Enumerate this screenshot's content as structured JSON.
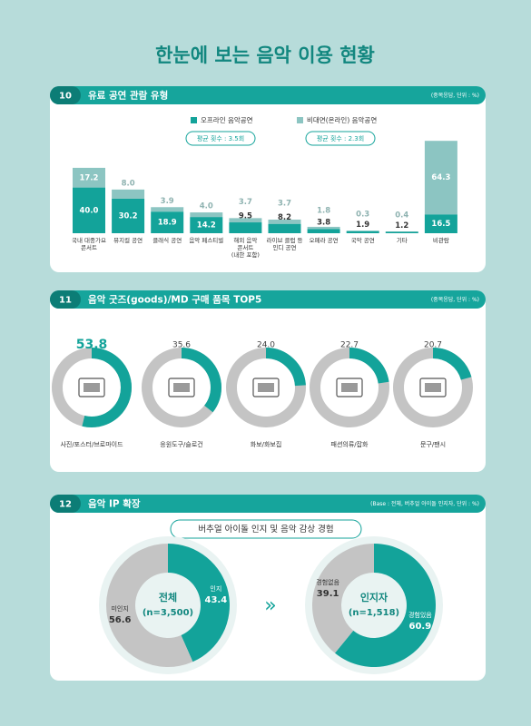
{
  "title": "한눈에 보는 음악 이용 현황",
  "chart_data": [
    {
      "type": "bar",
      "number": "10",
      "title": "유료 공연 관람 유형",
      "note": "(중복응답, 단위 : %)",
      "categories": [
        "국내 대중가요\n콘서트",
        "뮤지컬 공연",
        "클래식 공연",
        "음악 페스티벌",
        "해외 음악\n콘서트\n(내한 포함)",
        "라이브 클럽 등\n인디 공연",
        "오페라 공연",
        "국악 공연",
        "기타",
        "비관람"
      ],
      "series": [
        {
          "name": "오프라인 음악공연",
          "color": "#13a39a",
          "average": "평균 횟수 : 3.5회",
          "values": [
            40.0,
            30.2,
            18.9,
            14.2,
            9.5,
            8.2,
            3.8,
            1.9,
            1.2,
            16.5
          ],
          "value_labels": [
            "40.0",
            "30.2",
            "18.9",
            "14.2",
            "9.5",
            "8.2",
            "3.8",
            "1.9",
            "1.2",
            "16.5"
          ]
        },
        {
          "name": "비대면(온라인) 음악공연",
          "color": "#8cc5c2",
          "average": "평균 횟수 : 2.3회",
          "values": [
            17.2,
            8.0,
            3.9,
            4.0,
            3.7,
            3.7,
            1.8,
            0.3,
            0.4,
            64.3
          ],
          "value_labels": [
            "17.2",
            "8.0",
            "3.9",
            "4.0",
            "3.7",
            "3.7",
            "1.8",
            "0.3",
            "0.4",
            "64.3"
          ]
        }
      ]
    },
    {
      "type": "ring",
      "number": "11",
      "title": "음악 굿즈(goods)/MD 구매 품목 TOP5",
      "note": "(중복응답, 단위 : %)",
      "color": "#13a39a",
      "categories": [
        "사진/포스터/브로마이드",
        "응원도구/슬로건",
        "화보/화보집",
        "패션의류/잡화",
        "문구/팬시"
      ],
      "values": [
        53.8,
        35.6,
        24.0,
        22.7,
        20.7
      ],
      "value_labels": [
        "53.8",
        "35.6",
        "24.0",
        "22.7",
        "20.7"
      ]
    },
    {
      "type": "pie",
      "number": "12",
      "title": "음악 IP 확장",
      "note": "(Base : 전체, 버추얼 아이돌 인지자, 단위 : %)",
      "subtitle": "버추얼 아이돌 인지 및 음악 감상 경험",
      "center_title": "전체",
      "center_note": "(n=3,500)",
      "categories": [
        "인지",
        "미인지"
      ],
      "values": [
        43.4,
        56.6
      ],
      "colors": [
        "#13a39a",
        "#c4c4c4"
      ]
    },
    {
      "type": "pie",
      "center_title": "인지자",
      "center_note": "(n=1,518)",
      "categories": [
        "경험있음",
        "경험없음"
      ],
      "values": [
        60.9,
        39.1
      ],
      "colors": [
        "#13a39a",
        "#c4c4c4"
      ]
    }
  ]
}
